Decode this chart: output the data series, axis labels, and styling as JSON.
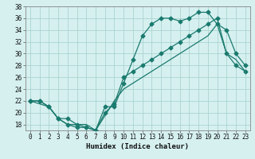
{
  "title": "",
  "xlabel": "Humidex (Indice chaleur)",
  "bg_color": "#d6f0f0",
  "grid_color": "#aad4d0",
  "line_color": "#1a7a6e",
  "xlim": [
    -0.5,
    23.5
  ],
  "ylim": [
    17,
    38
  ],
  "xtick_step": 1,
  "ytick_step": 2,
  "line1_x": [
    0,
    1,
    2,
    3,
    4,
    5,
    6,
    7,
    8,
    9,
    10,
    11,
    12,
    13,
    14,
    15,
    16,
    17,
    18,
    19,
    20,
    21,
    22,
    23
  ],
  "line1_y": [
    22,
    22,
    21,
    19,
    18,
    17.5,
    17.5,
    17,
    21,
    21,
    25,
    29,
    33,
    35,
    36,
    36,
    35.5,
    36,
    37,
    37,
    35,
    34,
    30,
    28
  ],
  "line2_x": [
    0,
    1,
    2,
    3,
    4,
    5,
    6,
    7,
    8,
    9,
    10,
    11,
    12,
    13,
    14,
    15,
    16,
    17,
    18,
    19,
    20,
    21,
    22,
    23
  ],
  "line2_y": [
    22,
    22,
    21,
    19,
    19,
    18,
    17.5,
    17,
    20,
    21.5,
    26,
    27,
    28,
    29,
    30,
    31,
    32,
    33,
    34,
    35,
    36,
    30,
    28,
    27
  ],
  "line3_x": [
    0,
    2,
    3,
    4,
    5,
    6,
    7,
    9,
    10,
    11,
    12,
    13,
    14,
    15,
    16,
    17,
    18,
    19,
    20,
    21,
    22,
    23
  ],
  "line3_y": [
    22,
    21,
    19,
    18,
    18,
    18,
    17,
    22,
    24,
    25,
    26,
    27,
    28,
    29,
    30,
    31,
    32,
    33,
    35,
    30,
    29,
    27
  ]
}
